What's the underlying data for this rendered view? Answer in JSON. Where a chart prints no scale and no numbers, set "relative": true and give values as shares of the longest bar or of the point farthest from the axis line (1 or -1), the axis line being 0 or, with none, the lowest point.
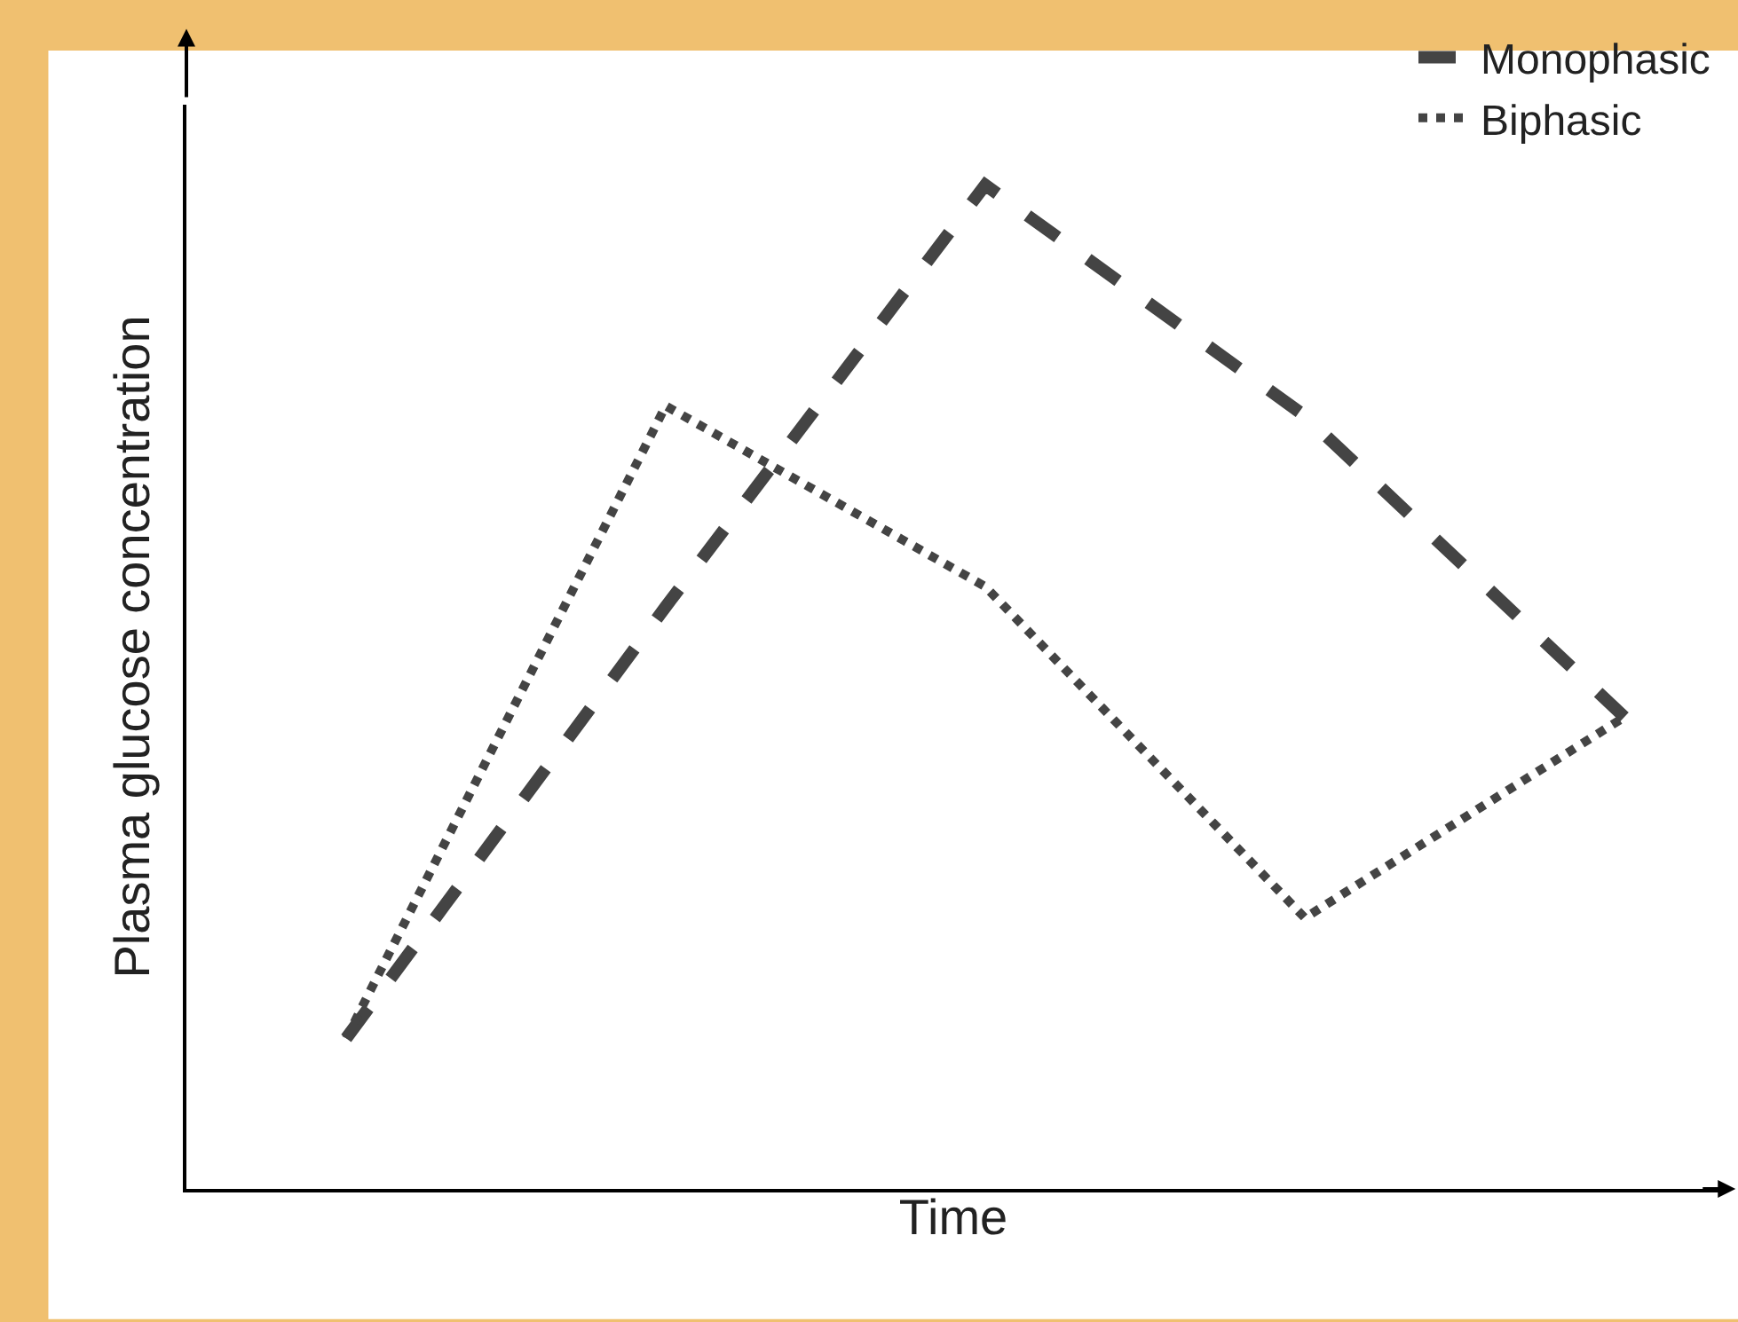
{
  "chart_data": {
    "type": "line",
    "relative": true,
    "xlabel": "Time",
    "ylabel": "Plasma glucose concentration",
    "categories": [
      null,
      null,
      null,
      null,
      null
    ],
    "series": [
      {
        "name": "Monophasic",
        "color": "#444444",
        "line_style": "dashed",
        "values": [
          0.15,
          0.58,
          1,
          0.77,
          0.47
        ]
      },
      {
        "name": "Biphasic",
        "color": "#444444",
        "line_style": "dotted",
        "values": [
          0.15,
          0.78,
          0.6,
          0.27,
          0.47
        ]
      }
    ],
    "legend": "top right",
    "marker": "none",
    "tick_labels": false
  }
}
